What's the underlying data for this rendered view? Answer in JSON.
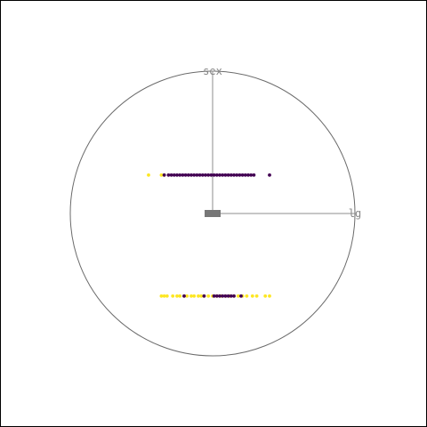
{
  "chart_data": {
    "type": "scatter",
    "title": "",
    "axes": [
      {
        "name": "lg",
        "direction_deg": 0
      },
      {
        "name": "sex",
        "direction_deg": 90
      }
    ],
    "center_marker": true,
    "circle": true,
    "series": [
      {
        "color": "#fde725",
        "points": [
          {
            "sex": 0.27,
            "lg": -0.45
          },
          {
            "sex": 0.27,
            "lg": -0.36
          },
          {
            "sex": 0.27,
            "lg": -0.34
          },
          {
            "sex": -0.58,
            "lg": -0.36
          },
          {
            "sex": -0.58,
            "lg": -0.34
          },
          {
            "sex": -0.58,
            "lg": -0.32
          },
          {
            "sex": -0.58,
            "lg": -0.28
          },
          {
            "sex": -0.58,
            "lg": -0.25
          },
          {
            "sex": -0.58,
            "lg": -0.23
          },
          {
            "sex": -0.58,
            "lg": -0.2
          },
          {
            "sex": -0.58,
            "lg": -0.18
          },
          {
            "sex": -0.58,
            "lg": -0.15
          },
          {
            "sex": -0.58,
            "lg": -0.13
          },
          {
            "sex": -0.58,
            "lg": -0.1
          },
          {
            "sex": -0.58,
            "lg": -0.08
          },
          {
            "sex": -0.58,
            "lg": -0.06
          },
          {
            "sex": -0.58,
            "lg": -0.03
          },
          {
            "sex": -0.58,
            "lg": 0.0
          },
          {
            "sex": -0.58,
            "lg": 0.03
          },
          {
            "sex": -0.58,
            "lg": 0.06
          },
          {
            "sex": -0.58,
            "lg": 0.09
          },
          {
            "sex": -0.58,
            "lg": 0.12
          },
          {
            "sex": -0.58,
            "lg": 0.15
          },
          {
            "sex": -0.58,
            "lg": 0.18
          },
          {
            "sex": -0.58,
            "lg": 0.21
          },
          {
            "sex": -0.58,
            "lg": 0.24
          },
          {
            "sex": -0.58,
            "lg": 0.28
          },
          {
            "sex": -0.58,
            "lg": 0.31
          },
          {
            "sex": -0.58,
            "lg": 0.37
          },
          {
            "sex": -0.58,
            "lg": 0.4
          }
        ]
      },
      {
        "color": "#440154",
        "points": [
          {
            "sex": 0.27,
            "lg": -0.34
          },
          {
            "sex": 0.27,
            "lg": -0.31
          },
          {
            "sex": 0.27,
            "lg": -0.29
          },
          {
            "sex": 0.27,
            "lg": -0.27
          },
          {
            "sex": 0.27,
            "lg": -0.25
          },
          {
            "sex": 0.27,
            "lg": -0.23
          },
          {
            "sex": 0.27,
            "lg": -0.21
          },
          {
            "sex": 0.27,
            "lg": -0.19
          },
          {
            "sex": 0.27,
            "lg": -0.17
          },
          {
            "sex": 0.27,
            "lg": -0.15
          },
          {
            "sex": 0.27,
            "lg": -0.13
          },
          {
            "sex": 0.27,
            "lg": -0.11
          },
          {
            "sex": 0.27,
            "lg": -0.09
          },
          {
            "sex": 0.27,
            "lg": -0.07
          },
          {
            "sex": 0.27,
            "lg": -0.05
          },
          {
            "sex": 0.27,
            "lg": -0.03
          },
          {
            "sex": 0.27,
            "lg": -0.01
          },
          {
            "sex": 0.27,
            "lg": 0.01
          },
          {
            "sex": 0.27,
            "lg": 0.03
          },
          {
            "sex": 0.27,
            "lg": 0.05
          },
          {
            "sex": 0.27,
            "lg": 0.07
          },
          {
            "sex": 0.27,
            "lg": 0.09
          },
          {
            "sex": 0.27,
            "lg": 0.11
          },
          {
            "sex": 0.27,
            "lg": 0.13
          },
          {
            "sex": 0.27,
            "lg": 0.15
          },
          {
            "sex": 0.27,
            "lg": 0.17
          },
          {
            "sex": 0.27,
            "lg": 0.19
          },
          {
            "sex": 0.27,
            "lg": 0.21
          },
          {
            "sex": 0.27,
            "lg": 0.23
          },
          {
            "sex": 0.27,
            "lg": 0.25
          },
          {
            "sex": 0.27,
            "lg": 0.27
          },
          {
            "sex": 0.27,
            "lg": 0.29
          },
          {
            "sex": 0.27,
            "lg": 0.4
          },
          {
            "sex": -0.58,
            "lg": -0.2
          },
          {
            "sex": -0.58,
            "lg": -0.06
          },
          {
            "sex": -0.58,
            "lg": 0.01
          },
          {
            "sex": -0.58,
            "lg": 0.03
          },
          {
            "sex": -0.58,
            "lg": 0.05
          },
          {
            "sex": -0.58,
            "lg": 0.07
          },
          {
            "sex": -0.58,
            "lg": 0.09
          },
          {
            "sex": -0.58,
            "lg": 0.11
          },
          {
            "sex": -0.58,
            "lg": 0.13
          },
          {
            "sex": -0.58,
            "lg": 0.15
          },
          {
            "sex": -0.58,
            "lg": 0.2
          }
        ]
      }
    ]
  }
}
